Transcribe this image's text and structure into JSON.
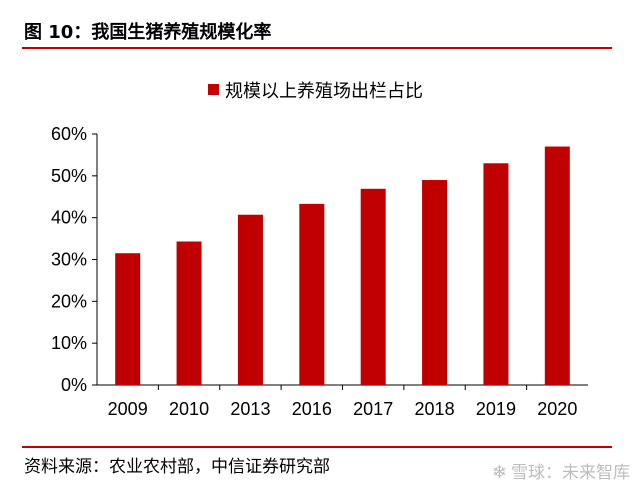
{
  "header": {
    "title": "图 10：我国生猪养殖规模化率"
  },
  "footer": {
    "source": "资料来源：农业农村部，中信证券研究部",
    "watermark": "雪球：未来智库",
    "watermark_icon": "snowball-logo-icon"
  },
  "colors": {
    "accent": "#c00000",
    "bar": "#c00000"
  },
  "chart_data": {
    "type": "bar",
    "title": "",
    "xlabel": "",
    "ylabel": "",
    "categories": [
      "2009",
      "2010",
      "2013",
      "2016",
      "2017",
      "2018",
      "2019",
      "2020"
    ],
    "series": [
      {
        "name": "规模以上养殖场出栏占比",
        "values": [
          0.315,
          0.343,
          0.407,
          0.433,
          0.469,
          0.49,
          0.53,
          0.57
        ]
      }
    ],
    "ylim": [
      0,
      0.6
    ],
    "yticks": [
      0,
      0.1,
      0.2,
      0.3,
      0.4,
      0.5,
      0.6
    ],
    "ytick_labels": [
      "0%",
      "10%",
      "20%",
      "30%",
      "40%",
      "50%",
      "60%"
    ],
    "grid": false,
    "legend_position": "top-center"
  }
}
